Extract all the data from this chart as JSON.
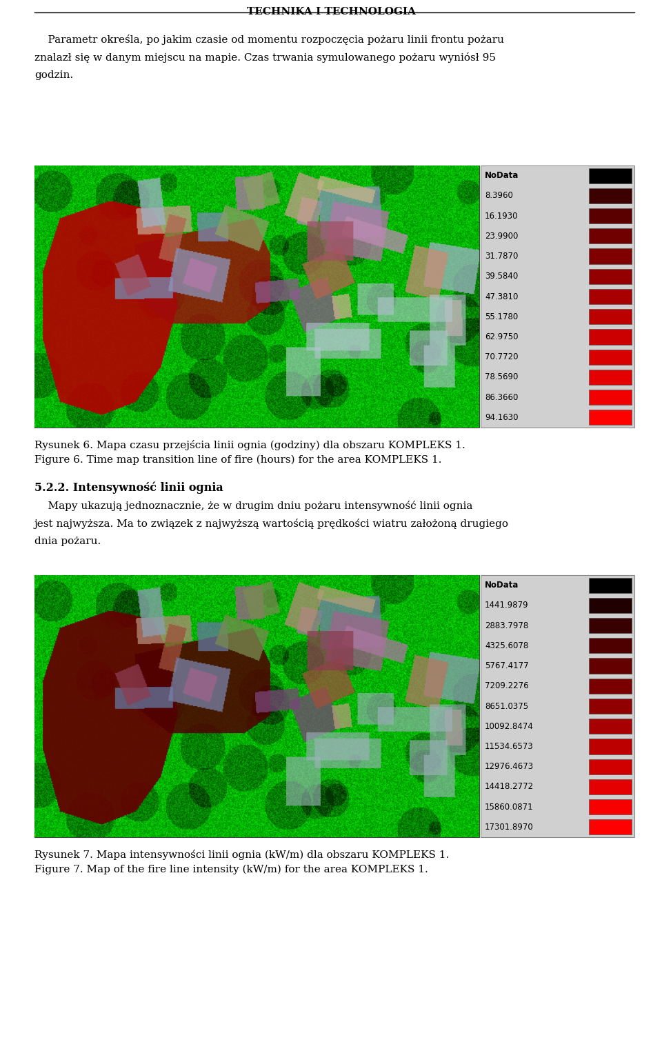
{
  "title": "TECHNIKA I TECHNOLOGIA",
  "para1_lines": [
    "    Parametr określa, po jakim czasie od momentu rozpoczęcia pożaru linii frontu pożaru",
    "znalazł się w danym miejscu na mapie. Czas trwania symulowanego pożaru wyniósł 95",
    "godzin."
  ],
  "legend1_title": "NoData",
  "legend1_labels": [
    "8.3960",
    "16.1930",
    "23.9900",
    "31.7870",
    "39.5840",
    "47.3810",
    "55.1780",
    "62.9750",
    "70.7720",
    "78.5690",
    "86.3660",
    "94.1630"
  ],
  "legend1_colors": [
    "#3d0000",
    "#5a0000",
    "#700000",
    "#800000",
    "#940000",
    "#a80000",
    "#bc0000",
    "#cc0000",
    "#d80000",
    "#e40000",
    "#f00000",
    "#ff0000"
  ],
  "nodata_color": "#000000",
  "caption1_pl": "Rysunek 6. Mapa czasu przejścia linii ognia (godziny) dla obszaru KOMPLEKS 1.",
  "caption1_en": "Figure 6. Time map transition line of fire (hours) for the area KOMPLEKS 1.",
  "section": "5.2.2. Intensywność linii ognia",
  "para2_lines": [
    "    Mapy ukazują jednoznacznie, że w drugim dniu pożaru intensywność linii ognia",
    "jest najwyższa. Ma to związek z najwyższą wartością prędkości wiatru założoną drugiego",
    "dnia pożaru."
  ],
  "legend2_title": "NoData",
  "legend2_labels": [
    "1441.9879",
    "2883.7978",
    "4325.6078",
    "5767.4177",
    "7209.2276",
    "8651.0375",
    "10092.8474",
    "11534.6573",
    "12976.4673",
    "14418.2772",
    "15860.0871",
    "17301.8970"
  ],
  "legend2_colors": [
    "#200000",
    "#380000",
    "#4e0000",
    "#640000",
    "#7a0000",
    "#900000",
    "#a60000",
    "#bc0000",
    "#d00000",
    "#e40000",
    "#f60000",
    "#ff0000"
  ],
  "caption2_pl": "Rysunek 7. Mapa intensywności linii ognia (kW/m) dla obszaru KOMPLEKS 1.",
  "caption2_en": "Figure 7. Map of the fire line intensity (kW/m) for the area KOMPLEKS 1.",
  "bg_color": "#ffffff",
  "text_color": "#000000",
  "legend_bg_color": "#d0d0d0"
}
